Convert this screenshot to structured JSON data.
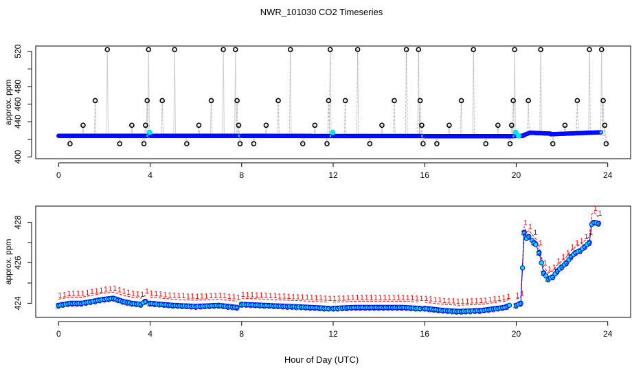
{
  "figure_title": "NWR_101030  CO2 Timeseries",
  "x_axis_label": "Hour of Day (UTC)",
  "colors": {
    "raw_line": "#a0a0a0",
    "raw_points": "#000000",
    "main_points": "#0000ff",
    "flag_points": "#00e5ee",
    "series_1": "#ff0000",
    "series_2": "#00c000",
    "series_3": "#0000ff",
    "series_fill": "#00e5ee"
  },
  "chart_data": [
    {
      "type": "scatter",
      "panel": "top",
      "title": "",
      "xlabel": "",
      "ylabel": "approx. ppm",
      "xlim": [
        -1,
        25
      ],
      "ylim": [
        398,
        526
      ],
      "xticks": [
        0,
        4,
        8,
        12,
        16,
        20,
        24
      ],
      "xtick_labels": [
        "0",
        "4",
        "8",
        "12",
        "16",
        "20",
        "24"
      ],
      "yticks": [
        400,
        420,
        440,
        460,
        480,
        500,
        520
      ],
      "ytick_labels": [
        "400",
        "",
        "440",
        "460",
        "480",
        "",
        "520"
      ],
      "baseline_segments": [
        {
          "x": [
            0.0,
            3.9
          ],
          "y": [
            424.0,
            424.0
          ]
        },
        {
          "x": [
            4.0,
            7.9
          ],
          "y": [
            424.0,
            424.0
          ]
        },
        {
          "x": [
            8.0,
            11.9
          ],
          "y": [
            424.0,
            423.8
          ]
        },
        {
          "x": [
            12.0,
            15.9
          ],
          "y": [
            423.8,
            423.8
          ]
        },
        {
          "x": [
            16.0,
            19.9
          ],
          "y": [
            423.6,
            423.6
          ]
        },
        {
          "x": [
            20.0,
            20.3
          ],
          "y": [
            423.8,
            424.0
          ]
        },
        {
          "x": [
            20.3,
            20.6
          ],
          "y": [
            424.5,
            427.5
          ]
        },
        {
          "x": [
            20.6,
            21.5
          ],
          "y": [
            427.5,
            426.5
          ]
        },
        {
          "x": [
            21.5,
            22.5
          ],
          "y": [
            425.8,
            426.8
          ]
        },
        {
          "x": [
            22.5,
            23.7
          ],
          "y": [
            426.8,
            428.0
          ]
        }
      ],
      "spikes": [
        {
          "x": 0.5,
          "y": 415
        },
        {
          "x": 1.07,
          "y": 436
        },
        {
          "x": 1.6,
          "y": 464
        },
        {
          "x": 2.13,
          "y": 522
        },
        {
          "x": 2.67,
          "y": 415
        },
        {
          "x": 3.2,
          "y": 436
        },
        {
          "x": 3.73,
          "y": 415
        },
        {
          "x": 3.8,
          "y": 436
        },
        {
          "x": 3.87,
          "y": 464
        },
        {
          "x": 3.93,
          "y": 522
        },
        {
          "x": 4.53,
          "y": 464
        },
        {
          "x": 5.07,
          "y": 522
        },
        {
          "x": 5.6,
          "y": 415
        },
        {
          "x": 6.13,
          "y": 436
        },
        {
          "x": 6.67,
          "y": 464
        },
        {
          "x": 7.2,
          "y": 522
        },
        {
          "x": 7.73,
          "y": 522
        },
        {
          "x": 7.8,
          "y": 464
        },
        {
          "x": 7.87,
          "y": 436
        },
        {
          "x": 7.93,
          "y": 415
        },
        {
          "x": 8.53,
          "y": 415
        },
        {
          "x": 9.07,
          "y": 436
        },
        {
          "x": 9.6,
          "y": 464
        },
        {
          "x": 10.13,
          "y": 522
        },
        {
          "x": 10.67,
          "y": 415
        },
        {
          "x": 11.2,
          "y": 436
        },
        {
          "x": 11.73,
          "y": 415
        },
        {
          "x": 11.8,
          "y": 464
        },
        {
          "x": 11.87,
          "y": 522
        },
        {
          "x": 12.53,
          "y": 464
        },
        {
          "x": 13.07,
          "y": 522
        },
        {
          "x": 13.6,
          "y": 415
        },
        {
          "x": 14.13,
          "y": 436
        },
        {
          "x": 14.67,
          "y": 464
        },
        {
          "x": 15.2,
          "y": 522
        },
        {
          "x": 15.73,
          "y": 522
        },
        {
          "x": 15.8,
          "y": 464
        },
        {
          "x": 15.87,
          "y": 436
        },
        {
          "x": 15.93,
          "y": 415
        },
        {
          "x": 16.53,
          "y": 415
        },
        {
          "x": 17.07,
          "y": 436
        },
        {
          "x": 17.6,
          "y": 464
        },
        {
          "x": 18.13,
          "y": 522
        },
        {
          "x": 18.67,
          "y": 415
        },
        {
          "x": 19.2,
          "y": 436
        },
        {
          "x": 19.73,
          "y": 415
        },
        {
          "x": 19.8,
          "y": 436
        },
        {
          "x": 19.87,
          "y": 464
        },
        {
          "x": 19.93,
          "y": 522
        },
        {
          "x": 20.53,
          "y": 464
        },
        {
          "x": 21.07,
          "y": 522
        },
        {
          "x": 21.6,
          "y": 415
        },
        {
          "x": 22.13,
          "y": 436
        },
        {
          "x": 22.67,
          "y": 464
        },
        {
          "x": 23.2,
          "y": 522
        },
        {
          "x": 23.73,
          "y": 522
        },
        {
          "x": 23.8,
          "y": 464
        },
        {
          "x": 23.87,
          "y": 436
        },
        {
          "x": 23.93,
          "y": 415
        }
      ],
      "flag_points": [
        {
          "x": 3.98,
          "y": 428
        },
        {
          "x": 11.98,
          "y": 428
        },
        {
          "x": 19.98,
          "y": 428
        },
        {
          "x": 20.1,
          "y": 424
        }
      ]
    },
    {
      "type": "line",
      "panel": "bottom",
      "title": "",
      "xlabel": "Hour of Day (UTC)",
      "ylabel": "approx. ppm",
      "xlim": [
        -1,
        25
      ],
      "ylim": [
        423.3,
        428.8
      ],
      "xticks": [
        0,
        4,
        8,
        12,
        16,
        20,
        24
      ],
      "xtick_labels": [
        "0",
        "4",
        "8",
        "12",
        "16",
        "20",
        "24"
      ],
      "yticks": [
        424,
        425,
        426,
        427,
        428
      ],
      "ytick_labels": [
        "424",
        "",
        "426",
        "",
        "428"
      ],
      "series": [
        {
          "name": "3",
          "marker": "3",
          "segments": [
            {
              "x": [
                0.0,
                0.5,
                1.0,
                1.5,
                2.0,
                2.4,
                2.8,
                3.2,
                3.6,
                3.8
              ],
              "y": [
                423.9,
                424.0,
                424.0,
                424.1,
                424.2,
                424.25,
                424.1,
                424.0,
                423.95,
                424.1
              ]
            },
            {
              "x": [
                4.0,
                5.0,
                6.0,
                7.0,
                7.8
              ],
              "y": [
                424.0,
                423.9,
                423.85,
                423.9,
                423.8
              ]
            },
            {
              "x": [
                8.0,
                9.0,
                10.0,
                11.0,
                11.8
              ],
              "y": [
                423.95,
                423.9,
                423.85,
                423.8,
                423.75
              ]
            },
            {
              "x": [
                12.0,
                13.0,
                14.0,
                15.0,
                15.8
              ],
              "y": [
                423.75,
                423.8,
                423.8,
                423.8,
                423.75
              ]
            },
            {
              "x": [
                16.0,
                16.8,
                17.5,
                18.5,
                19.5,
                19.7
              ],
              "y": [
                423.75,
                423.65,
                423.6,
                423.65,
                423.8,
                423.9
              ]
            },
            {
              "x": [
                20.0,
                20.2,
                20.35,
                20.45,
                20.55,
                20.7,
                20.85,
                21.0,
                21.2,
                21.4,
                21.6,
                21.8,
                22.0,
                22.2,
                22.4,
                22.6,
                22.8,
                23.0,
                23.2,
                23.3,
                23.4,
                23.6
              ],
              "y": [
                423.9,
                424.0,
                427.5,
                427.2,
                427.3,
                427.1,
                426.9,
                426.5,
                425.5,
                425.2,
                425.3,
                425.6,
                425.8,
                426.0,
                426.3,
                426.5,
                426.6,
                426.8,
                427.0,
                427.9,
                428.0,
                427.95
              ]
            }
          ]
        },
        {
          "name": "2",
          "marker": "2",
          "segments": [
            {
              "x": [
                0.0,
                0.5,
                1.0,
                1.5,
                2.0,
                2.4,
                2.8,
                3.2,
                3.6,
                3.8
              ],
              "y": [
                424.0,
                424.1,
                424.1,
                424.2,
                424.3,
                424.35,
                424.2,
                424.1,
                424.05,
                424.2
              ]
            },
            {
              "x": [
                4.0,
                5.0,
                6.0,
                7.0,
                7.8
              ],
              "y": [
                424.1,
                424.0,
                423.95,
                424.0,
                423.9
              ]
            },
            {
              "x": [
                8.0,
                9.0,
                10.0,
                11.0,
                11.8
              ],
              "y": [
                424.05,
                424.0,
                423.95,
                423.9,
                423.85
              ]
            },
            {
              "x": [
                12.0,
                13.0,
                14.0,
                15.0,
                15.8
              ],
              "y": [
                423.85,
                423.9,
                423.9,
                423.9,
                423.85
              ]
            },
            {
              "x": [
                16.0,
                16.8,
                17.5,
                18.5,
                19.5,
                19.7
              ],
              "y": [
                423.85,
                423.75,
                423.7,
                423.75,
                423.9,
                424.0
              ]
            },
            {
              "x": [
                20.0,
                20.2,
                20.35,
                20.45,
                20.55,
                20.7,
                20.85,
                21.0,
                21.2,
                21.4,
                21.6,
                21.8,
                22.0,
                22.2,
                22.4,
                22.6,
                22.8,
                23.0,
                23.2,
                23.3,
                23.4,
                23.6
              ],
              "y": [
                424.0,
                424.1,
                427.6,
                427.3,
                427.4,
                427.2,
                427.0,
                426.6,
                425.6,
                425.3,
                425.4,
                425.7,
                425.9,
                426.1,
                426.4,
                426.6,
                426.7,
                426.9,
                427.1,
                428.0,
                428.1,
                428.05
              ]
            }
          ]
        },
        {
          "name": "1",
          "marker": "1",
          "segments": [
            {
              "x": [
                0.0,
                0.5,
                1.0,
                1.5,
                2.0,
                2.4,
                2.8,
                3.2,
                3.6,
                3.8
              ],
              "y": [
                424.2,
                424.3,
                424.3,
                424.4,
                424.5,
                424.55,
                424.4,
                424.3,
                424.25,
                424.4
              ]
            },
            {
              "x": [
                4.0,
                5.0,
                6.0,
                7.0,
                7.8
              ],
              "y": [
                424.3,
                424.2,
                424.15,
                424.2,
                424.1
              ]
            },
            {
              "x": [
                8.0,
                9.0,
                10.0,
                11.0,
                11.8
              ],
              "y": [
                424.25,
                424.2,
                424.15,
                424.1,
                424.05
              ]
            },
            {
              "x": [
                12.0,
                13.0,
                14.0,
                15.0,
                15.8
              ],
              "y": [
                424.05,
                424.1,
                424.1,
                424.1,
                424.05
              ]
            },
            {
              "x": [
                16.0,
                16.8,
                17.5,
                18.5,
                19.5,
                19.7
              ],
              "y": [
                424.05,
                423.95,
                423.9,
                423.95,
                424.1,
                424.2
              ]
            },
            {
              "x": [
                20.0,
                20.2,
                20.35,
                20.45,
                20.55,
                20.7,
                20.85,
                21.0,
                21.2,
                21.4,
                21.6,
                21.8,
                22.0,
                22.2,
                22.4,
                22.6,
                22.8,
                23.0,
                23.2,
                23.3,
                23.4,
                23.6
              ],
              "y": [
                424.2,
                424.3,
                427.8,
                427.5,
                427.6,
                427.4,
                427.2,
                426.8,
                425.8,
                425.5,
                425.6,
                425.9,
                426.1,
                426.3,
                426.6,
                426.8,
                426.9,
                427.1,
                427.3,
                428.4,
                428.5,
                428.25
              ]
            }
          ]
        }
      ]
    }
  ]
}
